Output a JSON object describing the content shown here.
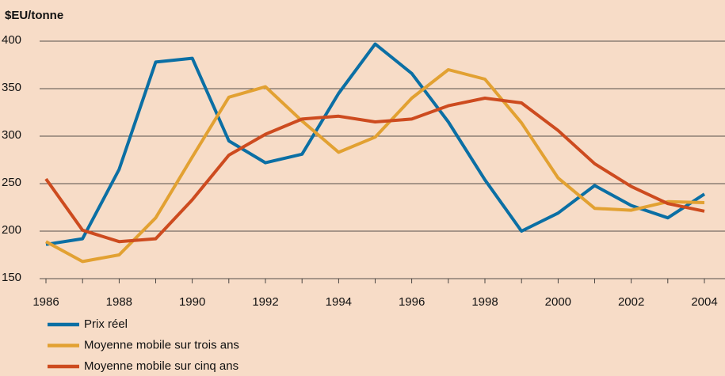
{
  "chart_data": {
    "type": "line",
    "y_label": "$EU/tonne",
    "x": [
      1986,
      1987,
      1988,
      1989,
      1990,
      1991,
      1992,
      1993,
      1994,
      1995,
      1996,
      1997,
      1998,
      1999,
      2000,
      2001,
      2002,
      2003,
      2004
    ],
    "xlim": [
      1986,
      2004
    ],
    "xticks": [
      1986,
      1988,
      1990,
      1992,
      1994,
      1996,
      1998,
      2000,
      2002,
      2004
    ],
    "ylim": [
      150,
      400
    ],
    "yticks": [
      150,
      200,
      250,
      300,
      350,
      400
    ],
    "grid": true,
    "legend": "bottom-left",
    "series": [
      {
        "name": "Prix réel",
        "color": "#0b6fa4",
        "values": [
          186,
          192,
          265,
          378,
          382,
          295,
          272,
          281,
          345,
          397,
          366,
          315,
          254,
          200,
          219,
          248,
          227,
          214,
          239
        ]
      },
      {
        "name": "Moyenne mobile sur trois ans",
        "color": "#e2a132",
        "values": [
          189,
          168,
          175,
          214,
          278,
          341,
          352,
          316,
          283,
          299,
          340,
          370,
          360,
          314,
          256,
          224,
          222,
          231,
          230
        ]
      },
      {
        "name": "Moyenne mobile sur cinq ans",
        "color": "#cd4b1f",
        "values": [
          255,
          201,
          189,
          192,
          233,
          280,
          302,
          318,
          321,
          315,
          318,
          332,
          340,
          335,
          306,
          271,
          247,
          229,
          221
        ]
      }
    ]
  }
}
